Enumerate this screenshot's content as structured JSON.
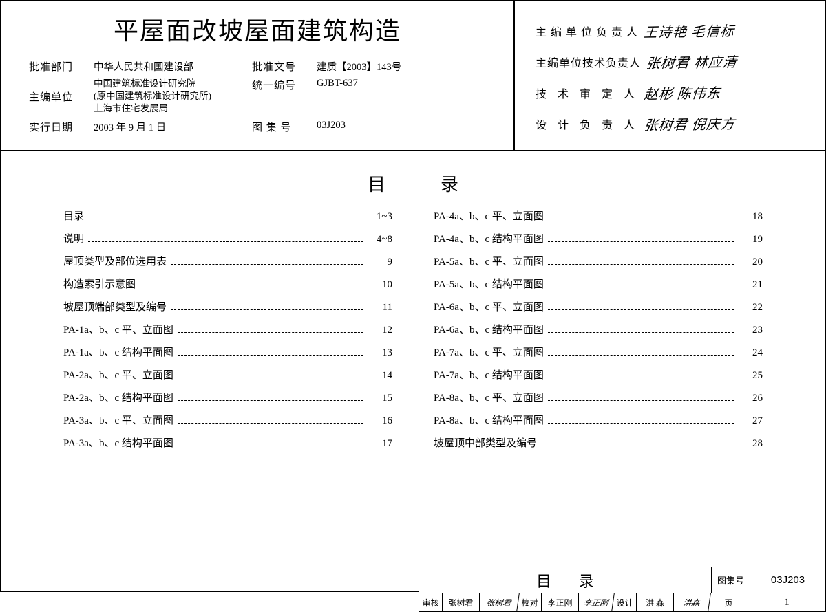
{
  "title": "平屋面改坡屋面建筑构造",
  "info": {
    "approval_dept_label": "批准部门",
    "approval_dept": "中华人民共和国建设部",
    "approval_doc_label": "批准文号",
    "approval_doc": "建质【2003】143号",
    "editor_org_label": "主编单位",
    "editor_org": "中国建筑标准设计研究院\n(原中国建筑标准设计研究所)\n上海市住宅发展局",
    "unified_no_label": "统一编号",
    "unified_no": "GJBT-637",
    "effective_label": "实行日期",
    "effective": "2003 年 9 月 1 日",
    "set_no_label": "图 集 号",
    "set_no": "03J203"
  },
  "signatures": {
    "s1_label": "主 编 单 位 负 责 人",
    "s1_val": "王诗艳 毛信标",
    "s2_label": "主编单位技术负责人",
    "s2_val": "张树君 林应清",
    "s3_label": "技 术 审 定 人",
    "s3_val": "赵彬 陈伟东",
    "s4_label": "设 计 负 责 人",
    "s4_val": "张树君 倪庆方"
  },
  "toc_heading": "目录",
  "toc_left": [
    {
      "label": "目录",
      "page": "1~3"
    },
    {
      "label": "说明",
      "page": "4~8"
    },
    {
      "label": "屋顶类型及部位选用表",
      "page": "9"
    },
    {
      "label": "构造索引示意图",
      "page": "10"
    },
    {
      "label": "坡屋顶端部类型及编号",
      "page": "11"
    },
    {
      "label": "PA-1a、b、c 平、立面图",
      "page": "12"
    },
    {
      "label": "PA-1a、b、c 结构平面图",
      "page": "13"
    },
    {
      "label": "PA-2a、b、c 平、立面图",
      "page": "14"
    },
    {
      "label": "PA-2a、b、c 结构平面图",
      "page": "15"
    },
    {
      "label": "PA-3a、b、c 平、立面图",
      "page": "16"
    },
    {
      "label": "PA-3a、b、c 结构平面图",
      "page": "17"
    }
  ],
  "toc_right": [
    {
      "label": "PA-4a、b、c 平、立面图",
      "page": "18"
    },
    {
      "label": "PA-4a、b、c 结构平面图",
      "page": "19"
    },
    {
      "label": "PA-5a、b、c 平、立面图",
      "page": "20"
    },
    {
      "label": "PA-5a、b、c 结构平面图",
      "page": "21"
    },
    {
      "label": "PA-6a、b、c 平、立面图",
      "page": "22"
    },
    {
      "label": "PA-6a、b、c 结构平面图",
      "page": "23"
    },
    {
      "label": "PA-7a、b、c 平、立面图",
      "page": "24"
    },
    {
      "label": "PA-7a、b、c 结构平面图",
      "page": "25"
    },
    {
      "label": "PA-8a、b、c 平、立面图",
      "page": "26"
    },
    {
      "label": "PA-8a、b、c 结构平面图",
      "page": "27"
    },
    {
      "label": "坡屋顶中部类型及编号",
      "page": "28"
    }
  ],
  "footer": {
    "title": "目录",
    "set_no_label": "图集号",
    "set_no": "03J203",
    "review_label": "审核",
    "review_name": "张树君",
    "review_sig": "张树君",
    "check_label": "校对",
    "check_name": "李正刚",
    "check_sig": "李正刚",
    "design_label": "设计",
    "design_name": "洪 森",
    "design_sig": "洪森",
    "page_label": "页",
    "page_no": "1"
  }
}
